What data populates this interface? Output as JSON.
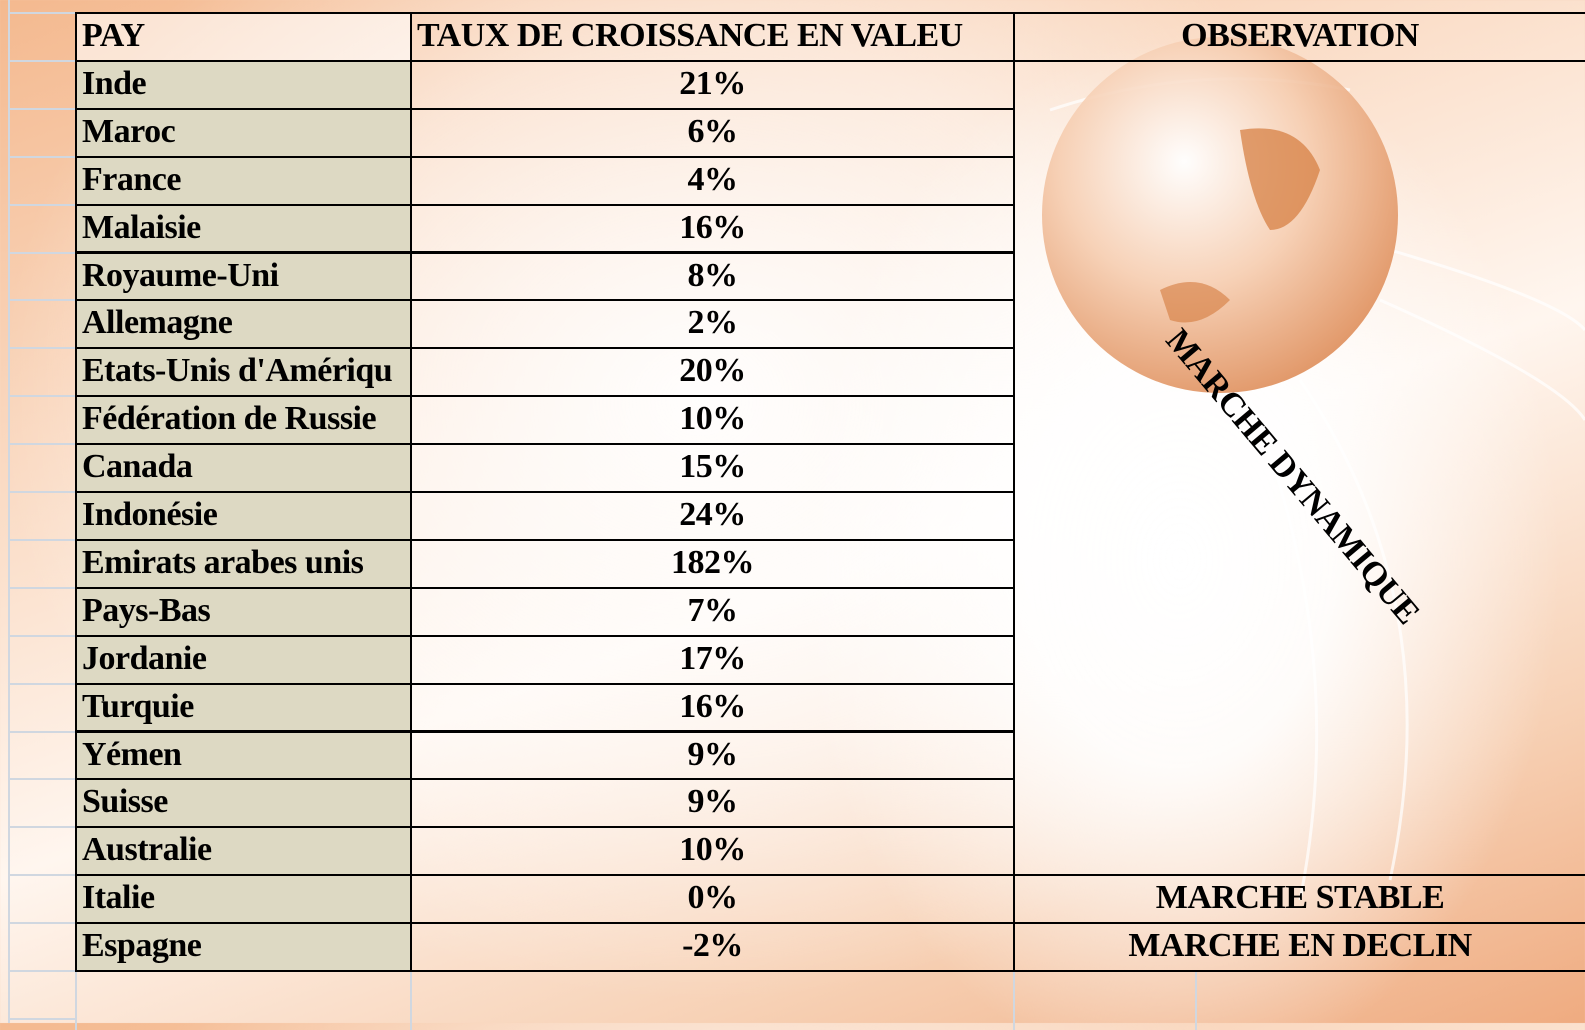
{
  "header": {
    "columns": [
      "PAY",
      "TAUX DE CROISSANCE EN VALEU",
      "OBSERVATION"
    ]
  },
  "table": {
    "rows": [
      [
        "Inde",
        "21%"
      ],
      [
        "Maroc",
        "6%"
      ],
      [
        "France",
        "4%"
      ],
      [
        "Malaisie",
        "16%"
      ],
      [
        "Royaume-Uni",
        "8%"
      ],
      [
        "Allemagne",
        "2%"
      ],
      [
        "Etats-Unis d'Amériqu",
        "20%"
      ],
      [
        "Fédération de Russie",
        "10%"
      ],
      [
        "Canada",
        "15%"
      ],
      [
        "Indonésie",
        "24%"
      ],
      [
        "Emirats arabes unis",
        "182%"
      ],
      [
        "Pays-Bas",
        "7%"
      ],
      [
        "Jordanie",
        "17%"
      ],
      [
        "Turquie",
        "16%"
      ],
      [
        "Yémen",
        "9%"
      ],
      [
        "Suisse",
        "9%"
      ],
      [
        "Australie",
        "10%"
      ],
      [
        "Italie",
        "0%"
      ],
      [
        "Espagne",
        "-2%"
      ]
    ]
  },
  "observations": [
    "MARCHE DYNAMIQUE",
    "MARCHE STABLE",
    "MARCHE EN DECLIN"
  ]
}
